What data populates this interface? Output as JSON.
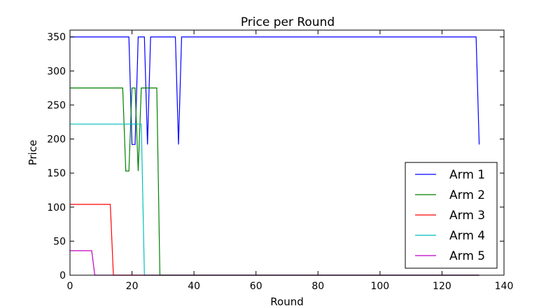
{
  "chart_data": {
    "type": "line",
    "title": "Price per Round",
    "xlabel": "Round",
    "ylabel": "Price",
    "xlim": [
      0,
      140
    ],
    "ylim": [
      0,
      360
    ],
    "xticks": [
      0,
      20,
      40,
      60,
      80,
      100,
      120,
      140
    ],
    "yticks": [
      0,
      50,
      100,
      150,
      200,
      250,
      300,
      350
    ],
    "grid": false,
    "legend_position": "lower-right",
    "series": [
      {
        "name": "Arm 1",
        "color": "#0000ff",
        "points": [
          [
            0,
            350
          ],
          [
            19,
            350
          ],
          [
            20,
            192
          ],
          [
            21,
            192
          ],
          [
            22,
            350
          ],
          [
            24,
            350
          ],
          [
            25,
            192
          ],
          [
            26,
            350
          ],
          [
            34,
            350
          ],
          [
            35,
            192
          ],
          [
            36,
            350
          ],
          [
            131,
            350
          ],
          [
            132,
            192
          ]
        ]
      },
      {
        "name": "Arm 2",
        "color": "#008000",
        "points": [
          [
            0,
            275
          ],
          [
            17,
            275
          ],
          [
            18,
            153
          ],
          [
            19,
            153
          ],
          [
            20,
            275
          ],
          [
            21,
            275
          ],
          [
            22,
            153
          ],
          [
            23,
            275
          ],
          [
            28,
            275
          ],
          [
            29,
            0
          ],
          [
            132,
            0
          ]
        ]
      },
      {
        "name": "Arm 3",
        "color": "#ff0000",
        "points": [
          [
            0,
            104
          ],
          [
            13,
            104
          ],
          [
            14,
            0
          ],
          [
            132,
            0
          ]
        ]
      },
      {
        "name": "Arm 4",
        "color": "#00bfbf",
        "points": [
          [
            0,
            222
          ],
          [
            23,
            222
          ],
          [
            24,
            0
          ],
          [
            132,
            0
          ]
        ]
      },
      {
        "name": "Arm 5",
        "color": "#bf00bf",
        "points": [
          [
            0,
            36
          ],
          [
            7,
            36
          ],
          [
            8,
            0
          ],
          [
            132,
            0
          ]
        ]
      }
    ]
  }
}
